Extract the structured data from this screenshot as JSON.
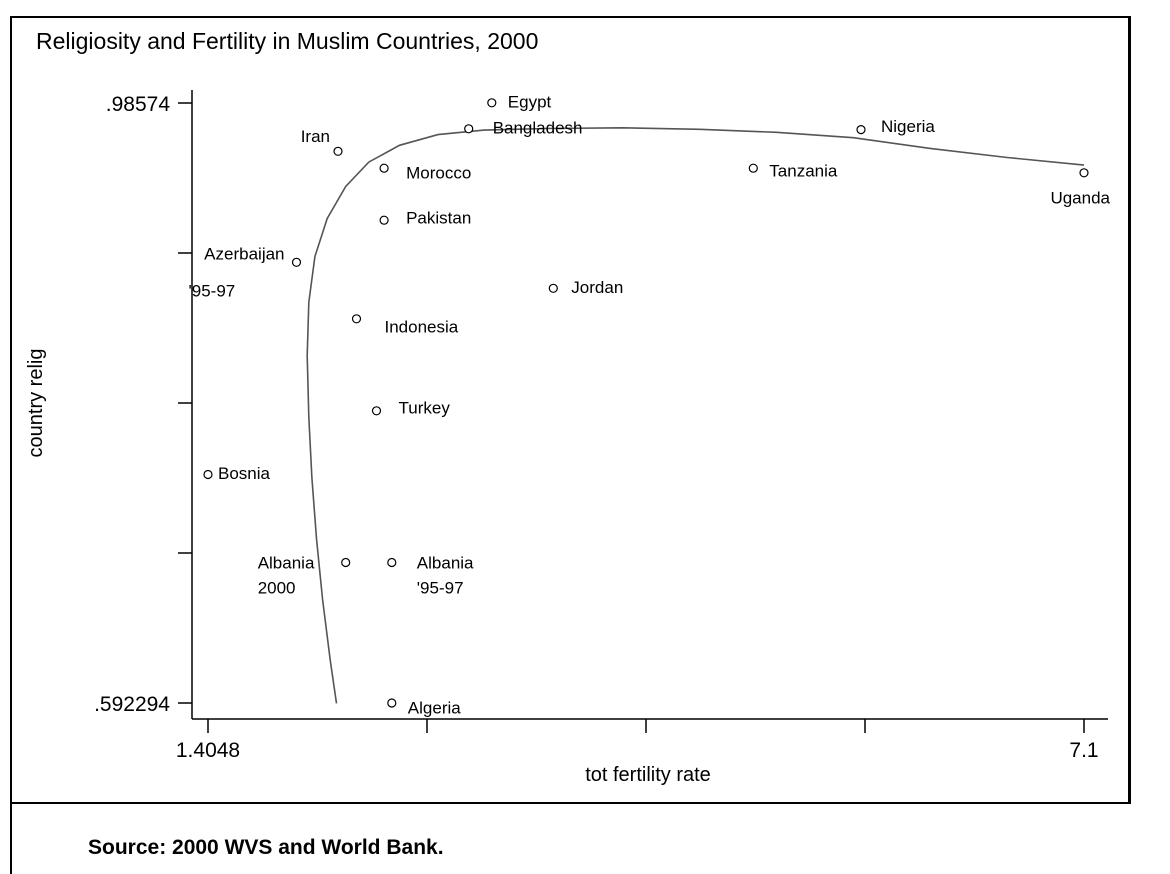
{
  "title": "Religiosity and Fertility in Muslim Countries, 2000",
  "source": "Source: 2000 WVS and World Bank.",
  "chart_data": {
    "type": "scatter",
    "title": "Religiosity and Fertility in Muslim Countries, 2000",
    "xlabel": "tot fertility rate",
    "ylabel": "country relig",
    "xlim": [
      1.4048,
      7.1
    ],
    "ylim": [
      0.592294,
      0.98574
    ],
    "xtick_labels": [
      "1.4048",
      "7.1"
    ],
    "ytick_labels": [
      ".98574",
      ".592294"
    ],
    "grid": false,
    "legend": "none",
    "colors": {
      "curve": "#555555",
      "points": "#000000",
      "axis": "#000000"
    },
    "points": [
      {
        "label": "Egypt",
        "x": 3.25,
        "y": 0.9859
      },
      {
        "label": "Bangladesh",
        "x": 3.1,
        "y": 0.9688
      },
      {
        "label": "Nigeria",
        "x": 5.65,
        "y": 0.9683
      },
      {
        "label": "Iran",
        "x": 2.25,
        "y": 0.9541
      },
      {
        "label": "Morocco",
        "x": 2.55,
        "y": 0.943
      },
      {
        "label": "Tanzania",
        "x": 4.95,
        "y": 0.943
      },
      {
        "label": "Uganda",
        "x": 7.1,
        "y": 0.94
      },
      {
        "label": "Pakistan",
        "x": 2.55,
        "y": 0.9089
      },
      {
        "label": "Azerbaijan '95-97",
        "x": 1.98,
        "y": 0.8813
      },
      {
        "label": "Jordan",
        "x": 3.65,
        "y": 0.8642
      },
      {
        "label": "Indonesia",
        "x": 2.37,
        "y": 0.8442
      },
      {
        "label": "Turkey",
        "x": 2.5,
        "y": 0.7839
      },
      {
        "label": "Bosnia",
        "x": 1.4048,
        "y": 0.7421
      },
      {
        "label": "Albania 2000",
        "x": 2.3,
        "y": 0.6844
      },
      {
        "label": "Albania '95-97",
        "x": 2.6,
        "y": 0.6844
      },
      {
        "label": "Algeria",
        "x": 2.6,
        "y": 0.5923
      }
    ],
    "fit_curve": {
      "type": "lowess",
      "x": [
        2.24,
        2.2,
        2.15,
        2.11,
        2.08,
        2.06,
        2.05,
        2.06,
        2.1,
        2.18,
        2.3,
        2.45,
        2.65,
        2.9,
        3.2,
        3.6,
        4.1,
        4.6,
        5.1,
        5.6,
        6.1,
        6.6,
        7.1
      ],
      "y": [
        0.592,
        0.62,
        0.66,
        0.7,
        0.74,
        0.78,
        0.82,
        0.855,
        0.885,
        0.91,
        0.931,
        0.947,
        0.958,
        0.965,
        0.968,
        0.969,
        0.9695,
        0.9685,
        0.9665,
        0.963,
        0.956,
        0.95,
        0.945
      ]
    }
  }
}
